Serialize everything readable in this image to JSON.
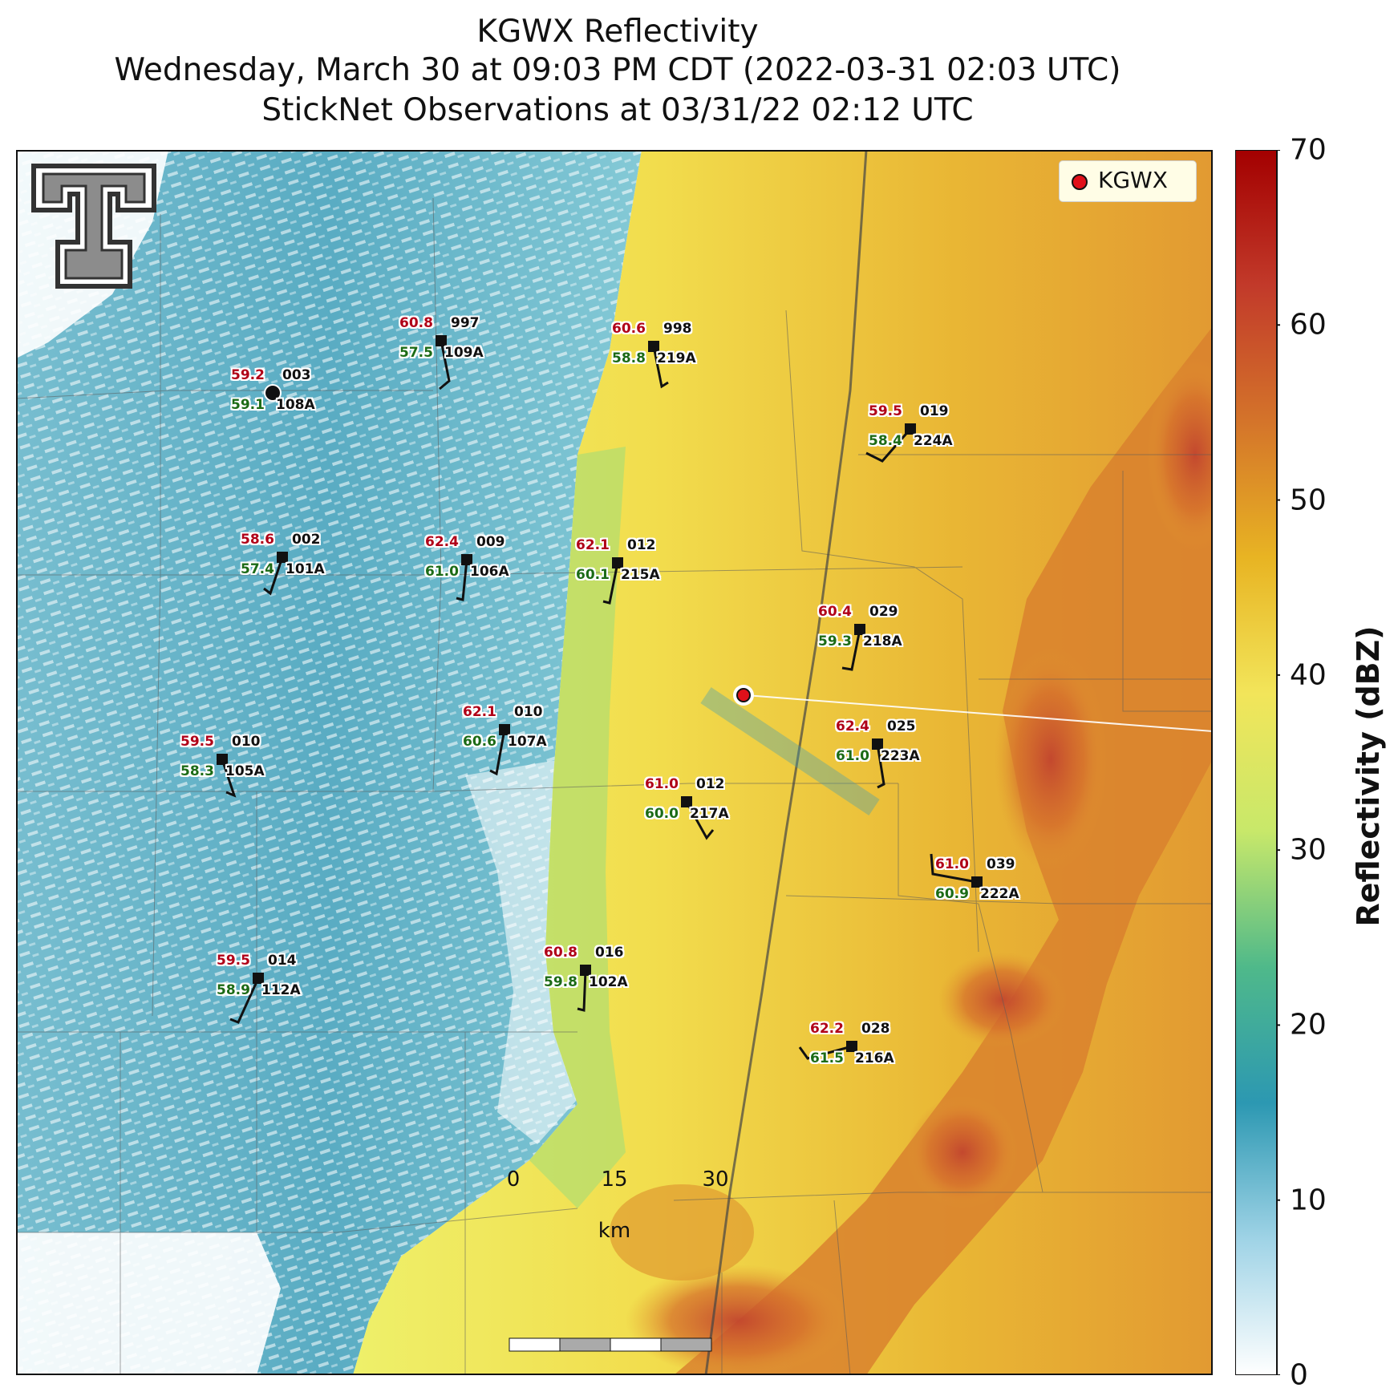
{
  "title": {
    "line1": "KGWX Reflectivity",
    "line2": "Wednesday, March 30 at 09:03 PM CDT (2022-03-31 02:03 UTC)",
    "line3": "StickNet Observations at 03/31/22 02:12 UTC"
  },
  "legend": {
    "label": "KGWX",
    "marker_color": "#e0101a"
  },
  "colorbar": {
    "label": "Reflectivity (dBZ)",
    "ticks": [
      "0",
      "10",
      "20",
      "30",
      "40",
      "50",
      "60",
      "70"
    ],
    "min": 0,
    "max": 70,
    "stops": [
      "#ffffff",
      "#9fd3e6",
      "#2c98b2",
      "#4fb98a",
      "#c8e86a",
      "#f2e55a",
      "#e8b423",
      "#d4742a",
      "#c23a2a",
      "#a30000"
    ]
  },
  "scalebar": {
    "labels": [
      "0",
      "15",
      "30"
    ],
    "unit": "km"
  },
  "logo": {
    "name": "Texas Tech Double T"
  },
  "stations": [
    {
      "temp": "59.2",
      "dew": "59.1",
      "top_id": "003",
      "bot_id": "108A"
    },
    {
      "temp": "60.8",
      "dew": "57.5",
      "top_id": "997",
      "bot_id": "109A"
    },
    {
      "temp": "60.6",
      "dew": "58.8",
      "top_id": "998",
      "bot_id": "219A"
    },
    {
      "temp": "59.5",
      "dew": "58.4",
      "top_id": "019",
      "bot_id": "224A"
    },
    {
      "temp": "58.6",
      "dew": "57.4",
      "top_id": "002",
      "bot_id": "101A"
    },
    {
      "temp": "62.4",
      "dew": "61.0",
      "top_id": "009",
      "bot_id": "106A"
    },
    {
      "temp": "62.1",
      "dew": "60.1",
      "top_id": "012",
      "bot_id": "215A"
    },
    {
      "temp": "60.4",
      "dew": "59.3",
      "top_id": "029",
      "bot_id": "218A"
    },
    {
      "temp": "62.1",
      "dew": "60.6",
      "top_id": "010",
      "bot_id": "107A"
    },
    {
      "temp": "59.5",
      "dew": "58.3",
      "top_id": "010",
      "bot_id": "105A"
    },
    {
      "temp": "62.4",
      "dew": "61.0",
      "top_id": "025",
      "bot_id": "223A"
    },
    {
      "temp": "61.0",
      "dew": "60.0",
      "top_id": "012",
      "bot_id": "217A"
    },
    {
      "temp": "61.0",
      "dew": "60.9",
      "top_id": "039",
      "bot_id": "222A"
    },
    {
      "temp": "59.5",
      "dew": "58.9",
      "top_id": "014",
      "bot_id": "112A"
    },
    {
      "temp": "60.8",
      "dew": "59.8",
      "top_id": "016",
      "bot_id": "102A"
    },
    {
      "temp": "62.2",
      "dew": "61.5",
      "top_id": "028",
      "bot_id": "216A"
    }
  ]
}
